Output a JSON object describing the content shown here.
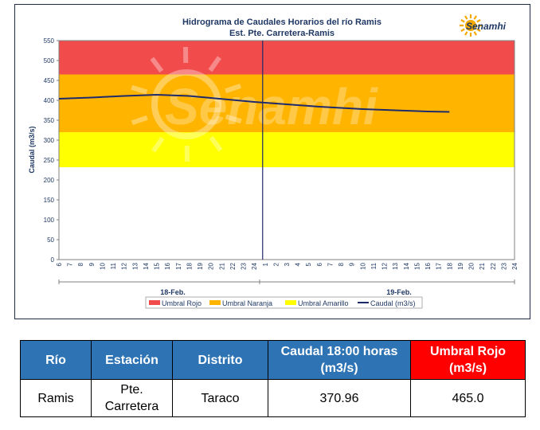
{
  "chart_data": {
    "type": "line",
    "title": "Hidrograma de Caudales Horarios del río Ramis",
    "subtitle": "Est. Pte. Carretera-Ramis",
    "ylabel": "Caudal  (m3/s)",
    "ylim": [
      0,
      550
    ],
    "yticks": [
      "550",
      "500",
      "450",
      "400",
      "350",
      "300",
      "250",
      "200",
      "150",
      "100",
      "50",
      "0"
    ],
    "x_ticks_day1": [
      "6",
      "7",
      "8",
      "9",
      "10",
      "11",
      "12",
      "13",
      "14",
      "15",
      "16",
      "17",
      "18",
      "19",
      "20",
      "21",
      "22",
      "23",
      "24"
    ],
    "x_ticks_day2": [
      "1",
      "2",
      "3",
      "4",
      "5",
      "6",
      "7",
      "8",
      "9",
      "10",
      "11",
      "12",
      "13",
      "14",
      "15",
      "16",
      "17",
      "18",
      "19",
      "20",
      "21",
      "22",
      "23",
      "24"
    ],
    "day_labels": [
      "18-Feb.",
      "19-Feb."
    ],
    "thresholds": [
      {
        "name": "Umbral Rojo",
        "from": 465,
        "to": 550,
        "color": "#f24b4b"
      },
      {
        "name": "Umbral Naranja",
        "from": 320,
        "to": 465,
        "color": "#ffb400"
      },
      {
        "name": "Umbral Amarillo",
        "from": 232,
        "to": 320,
        "color": "#ffff00"
      }
    ],
    "series": [
      {
        "name": "Caudal (m3/s)",
        "color": "#1f2a6b",
        "hours_since_start": [
          0,
          3,
          6,
          9,
          12,
          14,
          16,
          18,
          20,
          22,
          24,
          26,
          28,
          30,
          32,
          34,
          36
        ],
        "values": [
          404,
          407,
          411,
          414,
          411,
          406,
          401,
          396,
          392,
          388,
          384,
          381,
          378,
          376,
          374,
          372,
          371
        ]
      }
    ],
    "current_time_marker": "1",
    "legend_position": "bottom",
    "grid": false
  },
  "brand": {
    "logo_text": "Senamhi",
    "watermark": "Senamhi"
  },
  "table": {
    "headers": [
      {
        "lines": [
          "Río"
        ]
      },
      {
        "lines": [
          "Estación"
        ]
      },
      {
        "lines": [
          "Distrito"
        ]
      },
      {
        "lines": [
          "Caudal  18:00 horas",
          "(m3/s)"
        ]
      },
      {
        "lines": [
          "Umbral Rojo",
          "(m3/s)"
        ]
      }
    ],
    "row": [
      {
        "lines": [
          "Ramis"
        ]
      },
      {
        "lines": [
          "Pte.",
          "Carretera"
        ]
      },
      {
        "lines": [
          "Taraco"
        ]
      },
      {
        "lines": [
          "370.96"
        ]
      },
      {
        "lines": [
          "465.0"
        ]
      }
    ]
  }
}
